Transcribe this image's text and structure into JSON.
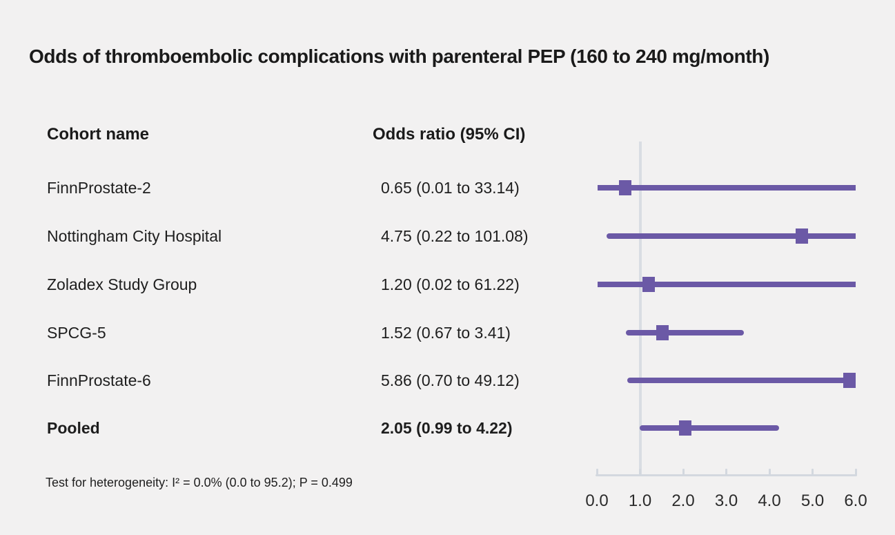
{
  "title": "Odds of thromboembolic complications with parenteral PEP (160 to 240 mg/month)",
  "columns": {
    "cohort": "Cohort name",
    "odds_ratio": "Odds ratio (95% CI)"
  },
  "footnote": "Test for heterogeneity: I² = 0.0% (0.0 to 95.2); P = 0.499",
  "colors": {
    "background": "#f2f1f1",
    "marker_purple": "#6b59a6",
    "reference_line": "#d9dde3",
    "axis_gray": "#d3d8df",
    "text": "#1e1e1e"
  },
  "chart_data": {
    "type": "forest",
    "title": "Odds of thromboembolic complications with parenteral PEP (160 to 240 mg/month)",
    "xlabel": "Odds ratio",
    "xlim": [
      0,
      6
    ],
    "reference_line": 1.0,
    "axis_ticks": [
      "0.0",
      "1.0",
      "2.0",
      "3.0",
      "4.0",
      "5.0",
      "6.0"
    ],
    "axis_tick_values": [
      0,
      1,
      2,
      3,
      4,
      5,
      6
    ],
    "legend_position": "none",
    "grid": false,
    "rows": [
      {
        "cohort": "FinnProstate-2",
        "label": "0.65 (0.01 to 33.14)",
        "or": 0.65,
        "lo": 0.01,
        "hi": 33.14,
        "bold": false
      },
      {
        "cohort": "Nottingham City Hospital",
        "label": "4.75 (0.22 to 101.08)",
        "or": 4.75,
        "lo": 0.22,
        "hi": 101.08,
        "bold": false
      },
      {
        "cohort": "Zoladex Study Group",
        "label": "1.20 (0.02 to 61.22)",
        "or": 1.2,
        "lo": 0.02,
        "hi": 61.22,
        "bold": false
      },
      {
        "cohort": "SPCG-5",
        "label": "1.52 (0.67 to 3.41)",
        "or": 1.52,
        "lo": 0.67,
        "hi": 3.41,
        "bold": false
      },
      {
        "cohort": "FinnProstate-6",
        "label": "5.86 (0.70 to 49.12)",
        "or": 5.86,
        "lo": 0.7,
        "hi": 49.12,
        "bold": false
      },
      {
        "cohort": "Pooled",
        "label": "2.05 (0.99 to 4.22)",
        "or": 2.05,
        "lo": 0.99,
        "hi": 4.22,
        "bold": true
      }
    ]
  }
}
